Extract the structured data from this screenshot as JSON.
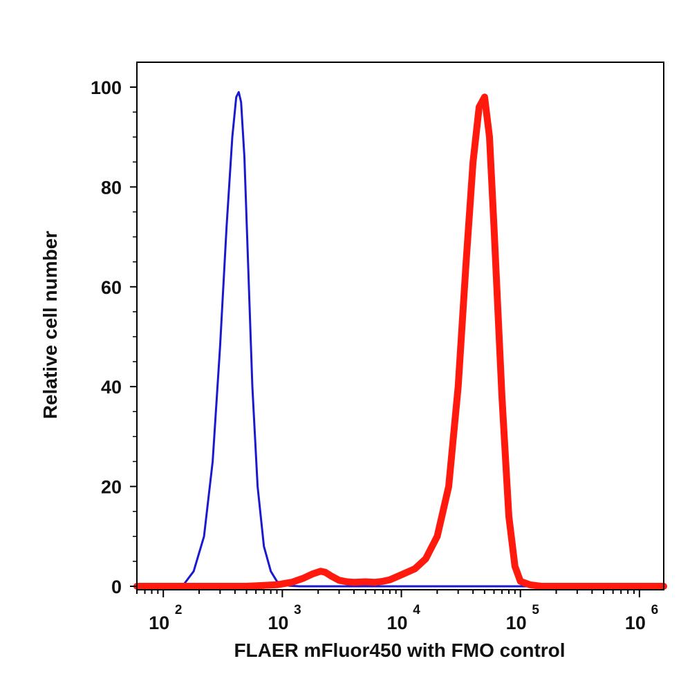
{
  "chart_data": {
    "type": "line",
    "xlabel": "FLAER mFluor450 with FMO control",
    "ylabel": "Relative cell number",
    "x_scale": "log",
    "xlim": [
      60,
      1600000
    ],
    "ylim": [
      0,
      105
    ],
    "y_ticks": [
      {
        "value": 0,
        "label": "0"
      },
      {
        "value": 20,
        "label": "20"
      },
      {
        "value": 40,
        "label": "40"
      },
      {
        "value": 60,
        "label": "60"
      },
      {
        "value": 80,
        "label": "80"
      },
      {
        "value": 100,
        "label": "100"
      }
    ],
    "x_ticks": [
      {
        "value": 100,
        "base": "10",
        "exp": "2"
      },
      {
        "value": 1000,
        "base": "10",
        "exp": "3"
      },
      {
        "value": 10000,
        "base": "10",
        "exp": "4"
      },
      {
        "value": 100000,
        "base": "10",
        "exp": "5"
      },
      {
        "value": 1000000,
        "base": "10",
        "exp": "6"
      }
    ],
    "grid": false,
    "series": [
      {
        "color": "#1a1acc",
        "stroke": "thin",
        "x": [
          60,
          120,
          150,
          180,
          220,
          260,
          300,
          340,
          380,
          410,
          430,
          450,
          480,
          520,
          560,
          620,
          700,
          800,
          900,
          1000,
          1150,
          1400,
          2000,
          10000,
          100000,
          1600000
        ],
        "y": [
          0,
          0,
          0.5,
          3,
          10,
          25,
          48,
          72,
          90,
          98,
          99,
          97,
          86,
          62,
          40,
          20,
          8,
          3,
          1,
          0.4,
          0.1,
          0,
          0,
          0,
          0,
          0
        ]
      },
      {
        "color": "#ff1a0d",
        "stroke": "thick",
        "x": [
          60,
          500,
          900,
          1200,
          1500,
          1800,
          2100,
          2300,
          2600,
          3000,
          3500,
          4000,
          5000,
          6000,
          7000,
          8000,
          10000,
          13000,
          16000,
          20000,
          25000,
          30000,
          35000,
          40000,
          45000,
          50000,
          55000,
          60000,
          70000,
          80000,
          90000,
          100000,
          120000,
          150000,
          1600000
        ],
        "y": [
          0,
          0,
          0.3,
          0.8,
          1.6,
          2.5,
          3,
          2.8,
          2,
          1.2,
          0.9,
          0.8,
          0.9,
          0.8,
          1,
          1.3,
          2.3,
          3.5,
          5.5,
          10,
          20,
          40,
          65,
          85,
          96,
          98,
          90,
          72,
          38,
          14,
          4,
          1,
          0.3,
          0,
          0
        ]
      }
    ]
  }
}
